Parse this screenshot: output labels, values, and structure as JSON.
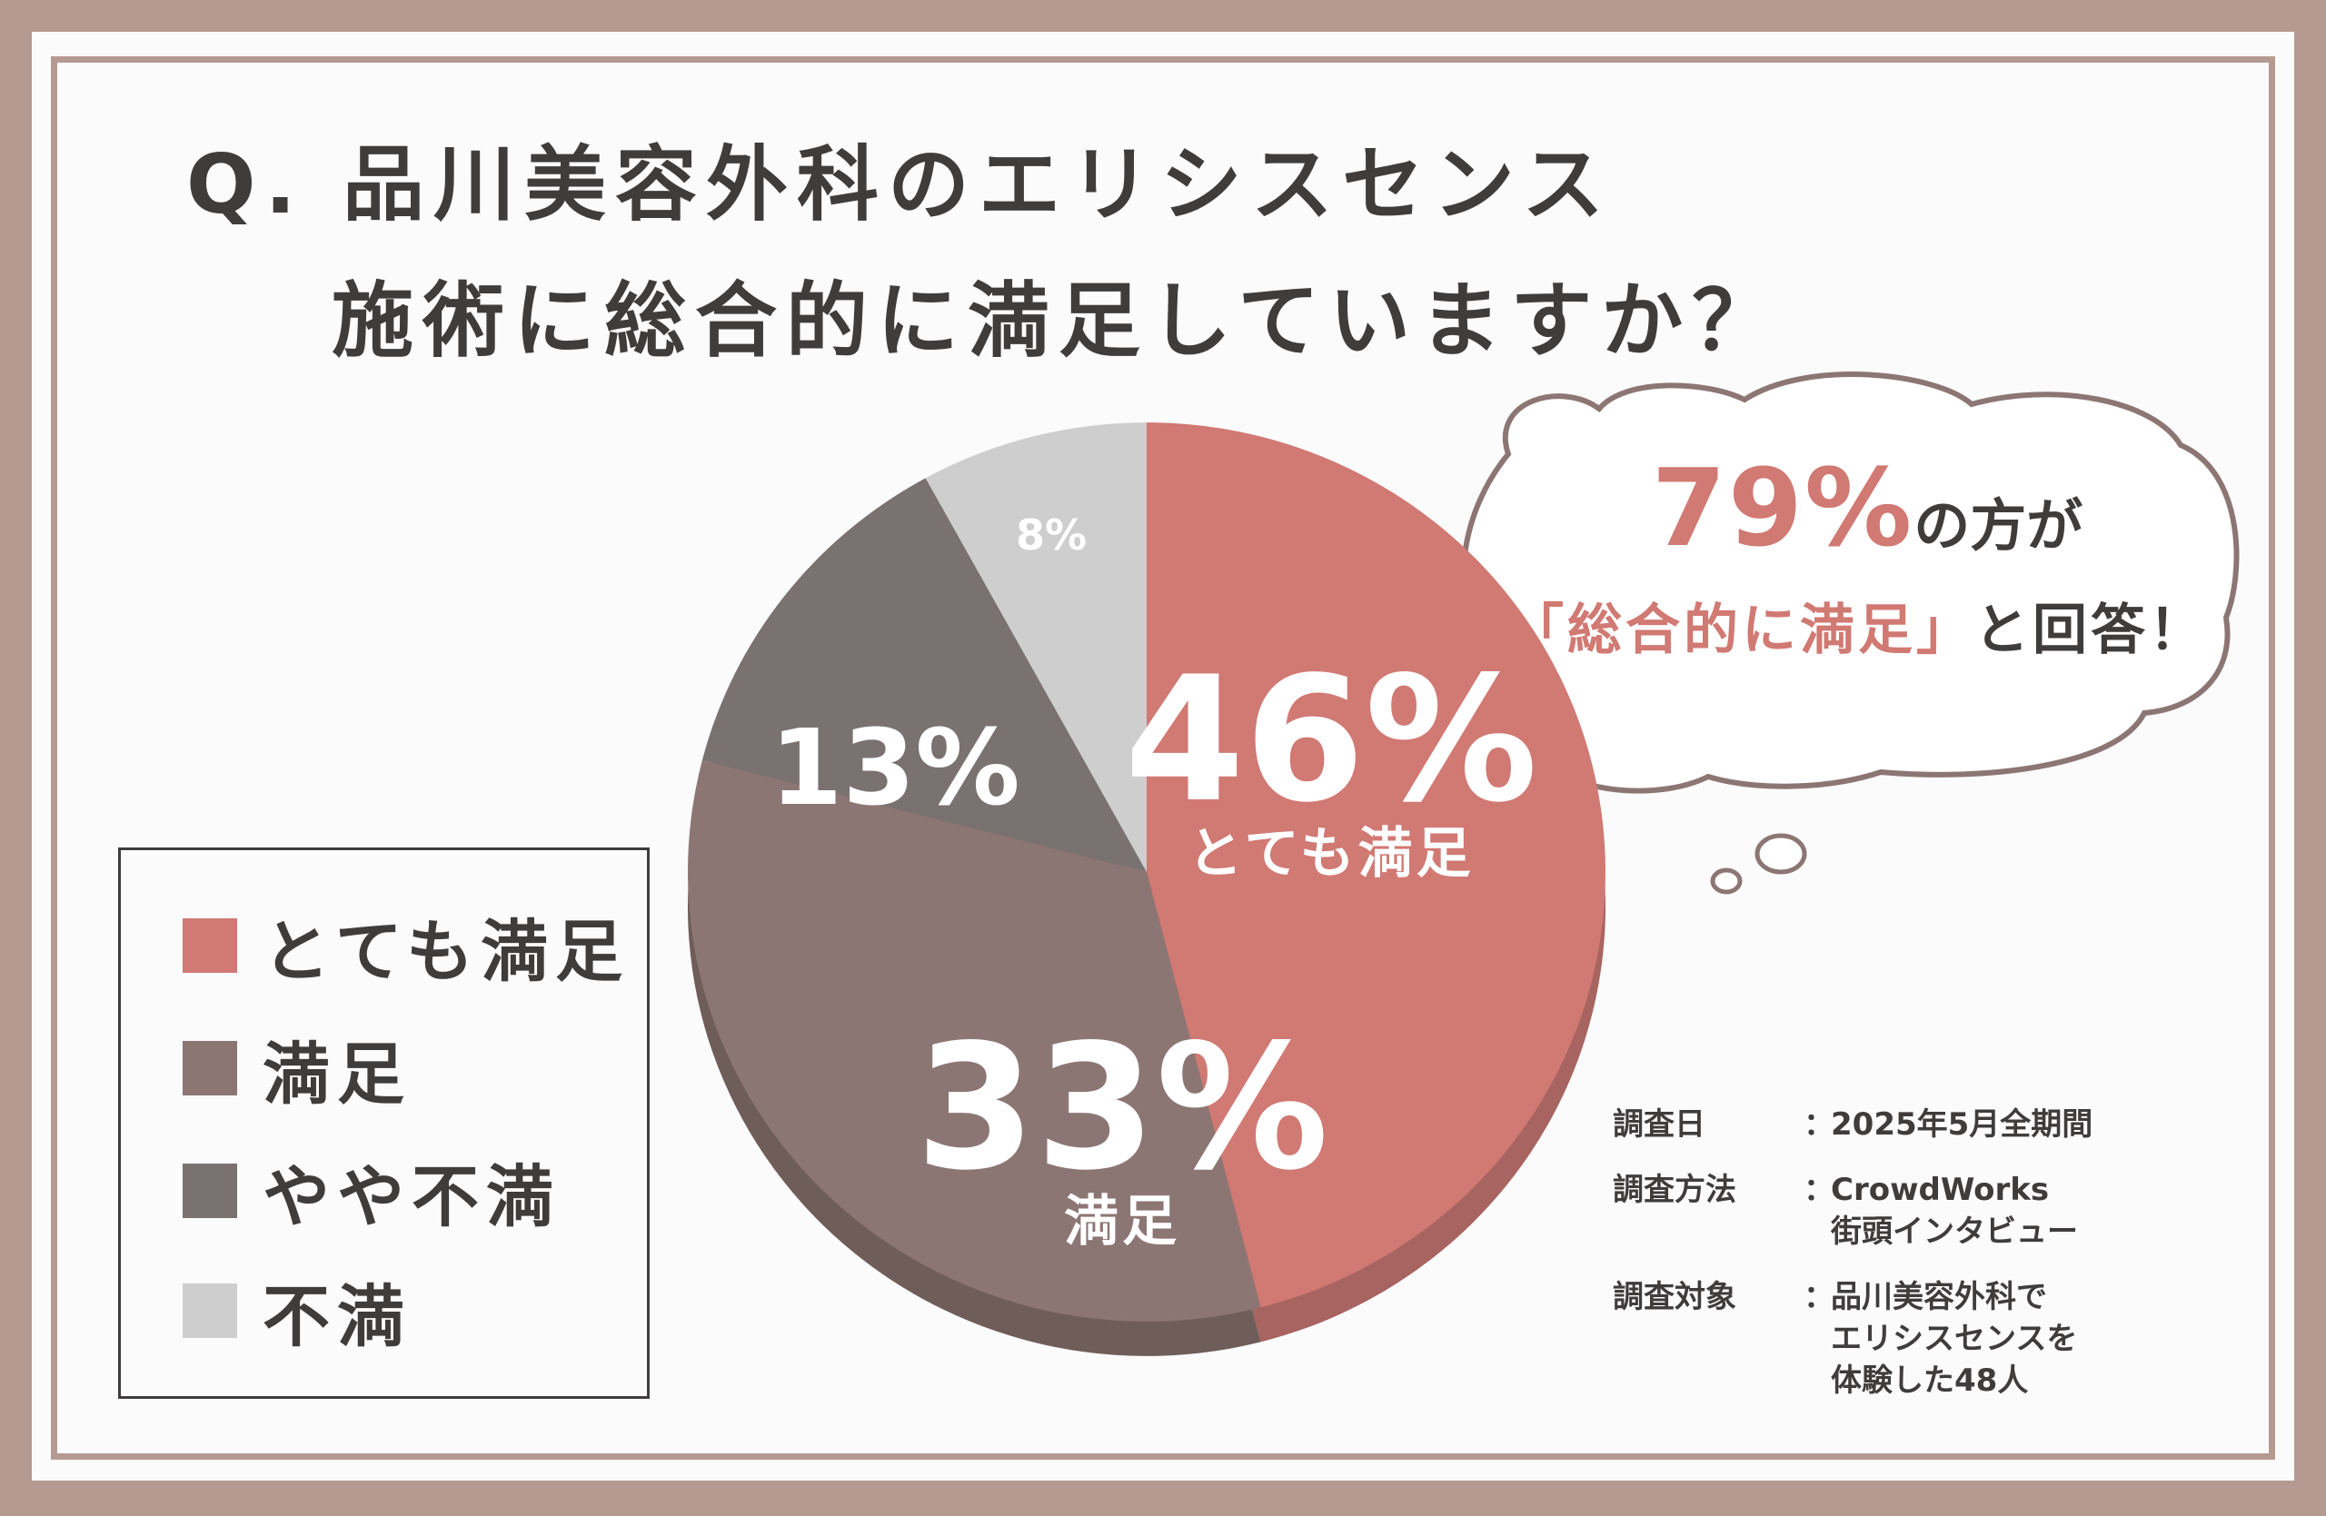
{
  "title": {
    "line1": "Q. 品川美容外科のエリシスセンス",
    "line2": "施術に総合的に満足していますか？"
  },
  "chart_data": {
    "type": "pie",
    "title": "Q. 品川美容外科のエリシスセンス施術に総合的に満足していますか？",
    "categories": [
      "とても満足",
      "満足",
      "やや不満",
      "不満"
    ],
    "values": [
      46,
      33,
      13,
      8
    ],
    "value_labels": [
      "46%",
      "33%",
      "13%",
      "8%"
    ],
    "slice_labels": [
      "とても満足",
      "満足",
      "",
      ""
    ],
    "colors": [
      "#d17973",
      "#8c7674",
      "#7a7171",
      "#cfcece"
    ],
    "shadow_colors": [
      "#a86460",
      "#6f5d5a",
      "#5d5757",
      "#b8b8b8"
    ],
    "legend_position": "left"
  },
  "legend": [
    {
      "label": "とても満足",
      "color": "#d17973"
    },
    {
      "label": "満足",
      "color": "#8c7674"
    },
    {
      "label": "やや不満",
      "color": "#7a7171"
    },
    {
      "label": "不満",
      "color": "#cfcece"
    }
  ],
  "callout": {
    "percent": "79%",
    "line1_suffix": "の方が",
    "quote": "「総合的に満足」",
    "line2_suffix": "と回答！"
  },
  "notes": [
    {
      "label": "調査日",
      "value_lines": [
        "2025年5月全期間"
      ]
    },
    {
      "label": "調査方法",
      "value_lines": [
        "CrowdWorks",
        "街頭インタビュー"
      ]
    },
    {
      "label": "調査対象",
      "value_lines": [
        "品川美容外科で",
        "エリシスセンスを",
        "体験した48人"
      ]
    }
  ],
  "note_separator": "：",
  "colors": {
    "frame": "#b59a92",
    "text": "#3f3c3c",
    "accent": "#d17973",
    "background": "#fbfbfb"
  }
}
